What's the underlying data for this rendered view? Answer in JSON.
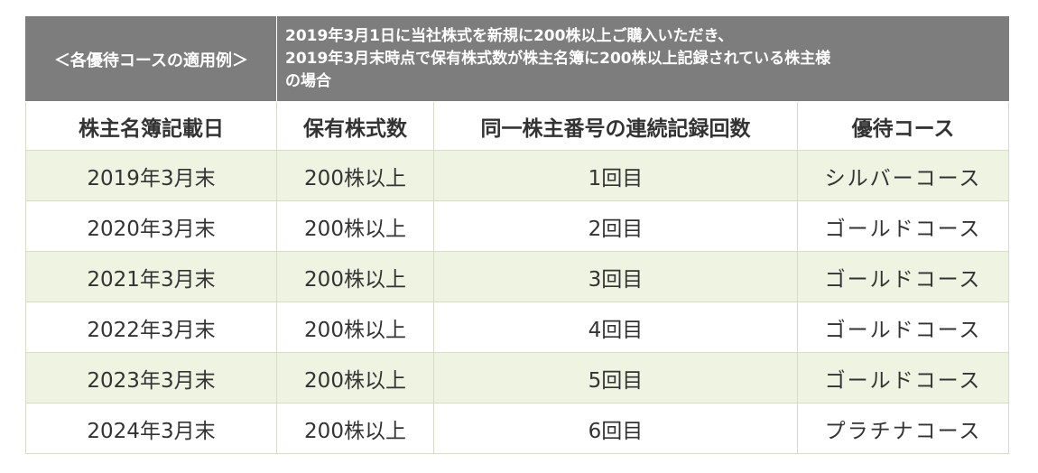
{
  "header": {
    "label": "＜各優待コースの適用例＞",
    "description_lines": [
      "2019年3月1日に当社株式を新規に200株以上ご購入いただき、",
      "2019年3月末時点で保有株式数が株主名簿に200株以上記録されている株主様",
      "の場合"
    ]
  },
  "columns": [
    "株主名簿記載日",
    "保有株式数",
    "同一株主番号の連続記録回数",
    "優待コース"
  ],
  "rows": [
    {
      "date": "2019年3月末",
      "shares": "200株以上",
      "count": "1回目",
      "course": "シルバーコース"
    },
    {
      "date": "2020年3月末",
      "shares": "200株以上",
      "count": "2回目",
      "course": "ゴールドコース"
    },
    {
      "date": "2021年3月末",
      "shares": "200株以上",
      "count": "3回目",
      "course": "ゴールドコース"
    },
    {
      "date": "2022年3月末",
      "shares": "200株以上",
      "count": "4回目",
      "course": "ゴールドコース"
    },
    {
      "date": "2023年3月末",
      "shares": "200株以上",
      "count": "5回目",
      "course": "ゴールドコース"
    },
    {
      "date": "2024年3月末",
      "shares": "200株以上",
      "count": "6回目",
      "course": "プラチナコース"
    }
  ],
  "colors": {
    "header_bg": "#7d7d7d",
    "alt_row_bg": "#eef3e2",
    "border": "#d6dcc8"
  }
}
